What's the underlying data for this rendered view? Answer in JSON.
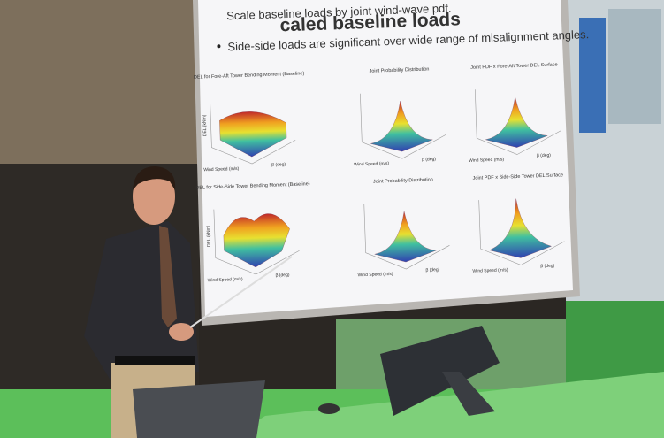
{
  "slide": {
    "title": "caled baseline loads",
    "bullets": [
      "Scale baseline loads by joint wind-wave pdf.",
      "Side-side loads are significant over wide range of misalignment angles."
    ],
    "plots": [
      {
        "title": "DEL for Fore-Aft Tower Bending Moment (Baseline)",
        "xlabel": "Wind Speed (m/s)",
        "ylabel": "β (deg)",
        "zlabel": "DEL (kNm)"
      },
      {
        "title": "Joint Probability Distribution",
        "xlabel": "Wind Speed (m/s)",
        "ylabel": "β (deg)"
      },
      {
        "title": "Joint PDF x Fore-Aft Tower DEL Surface",
        "xlabel": "Wind Speed (m/s)",
        "ylabel": "β (deg)"
      },
      {
        "title": "DEL for Side-Side Tower Bending Moment (Baseline)",
        "xlabel": "Wind Speed (m/s)",
        "ylabel": "β (deg)",
        "zlabel": "DEL (kNm)"
      },
      {
        "title": "Joint Probability Distribution",
        "xlabel": "Wind Speed (m/s)",
        "ylabel": "β (deg)"
      },
      {
        "title": "Joint PDF x Side-Side Tower DEL Surface",
        "xlabel": "Wind Speed (m/s)",
        "ylabel": "β (deg)"
      }
    ]
  }
}
